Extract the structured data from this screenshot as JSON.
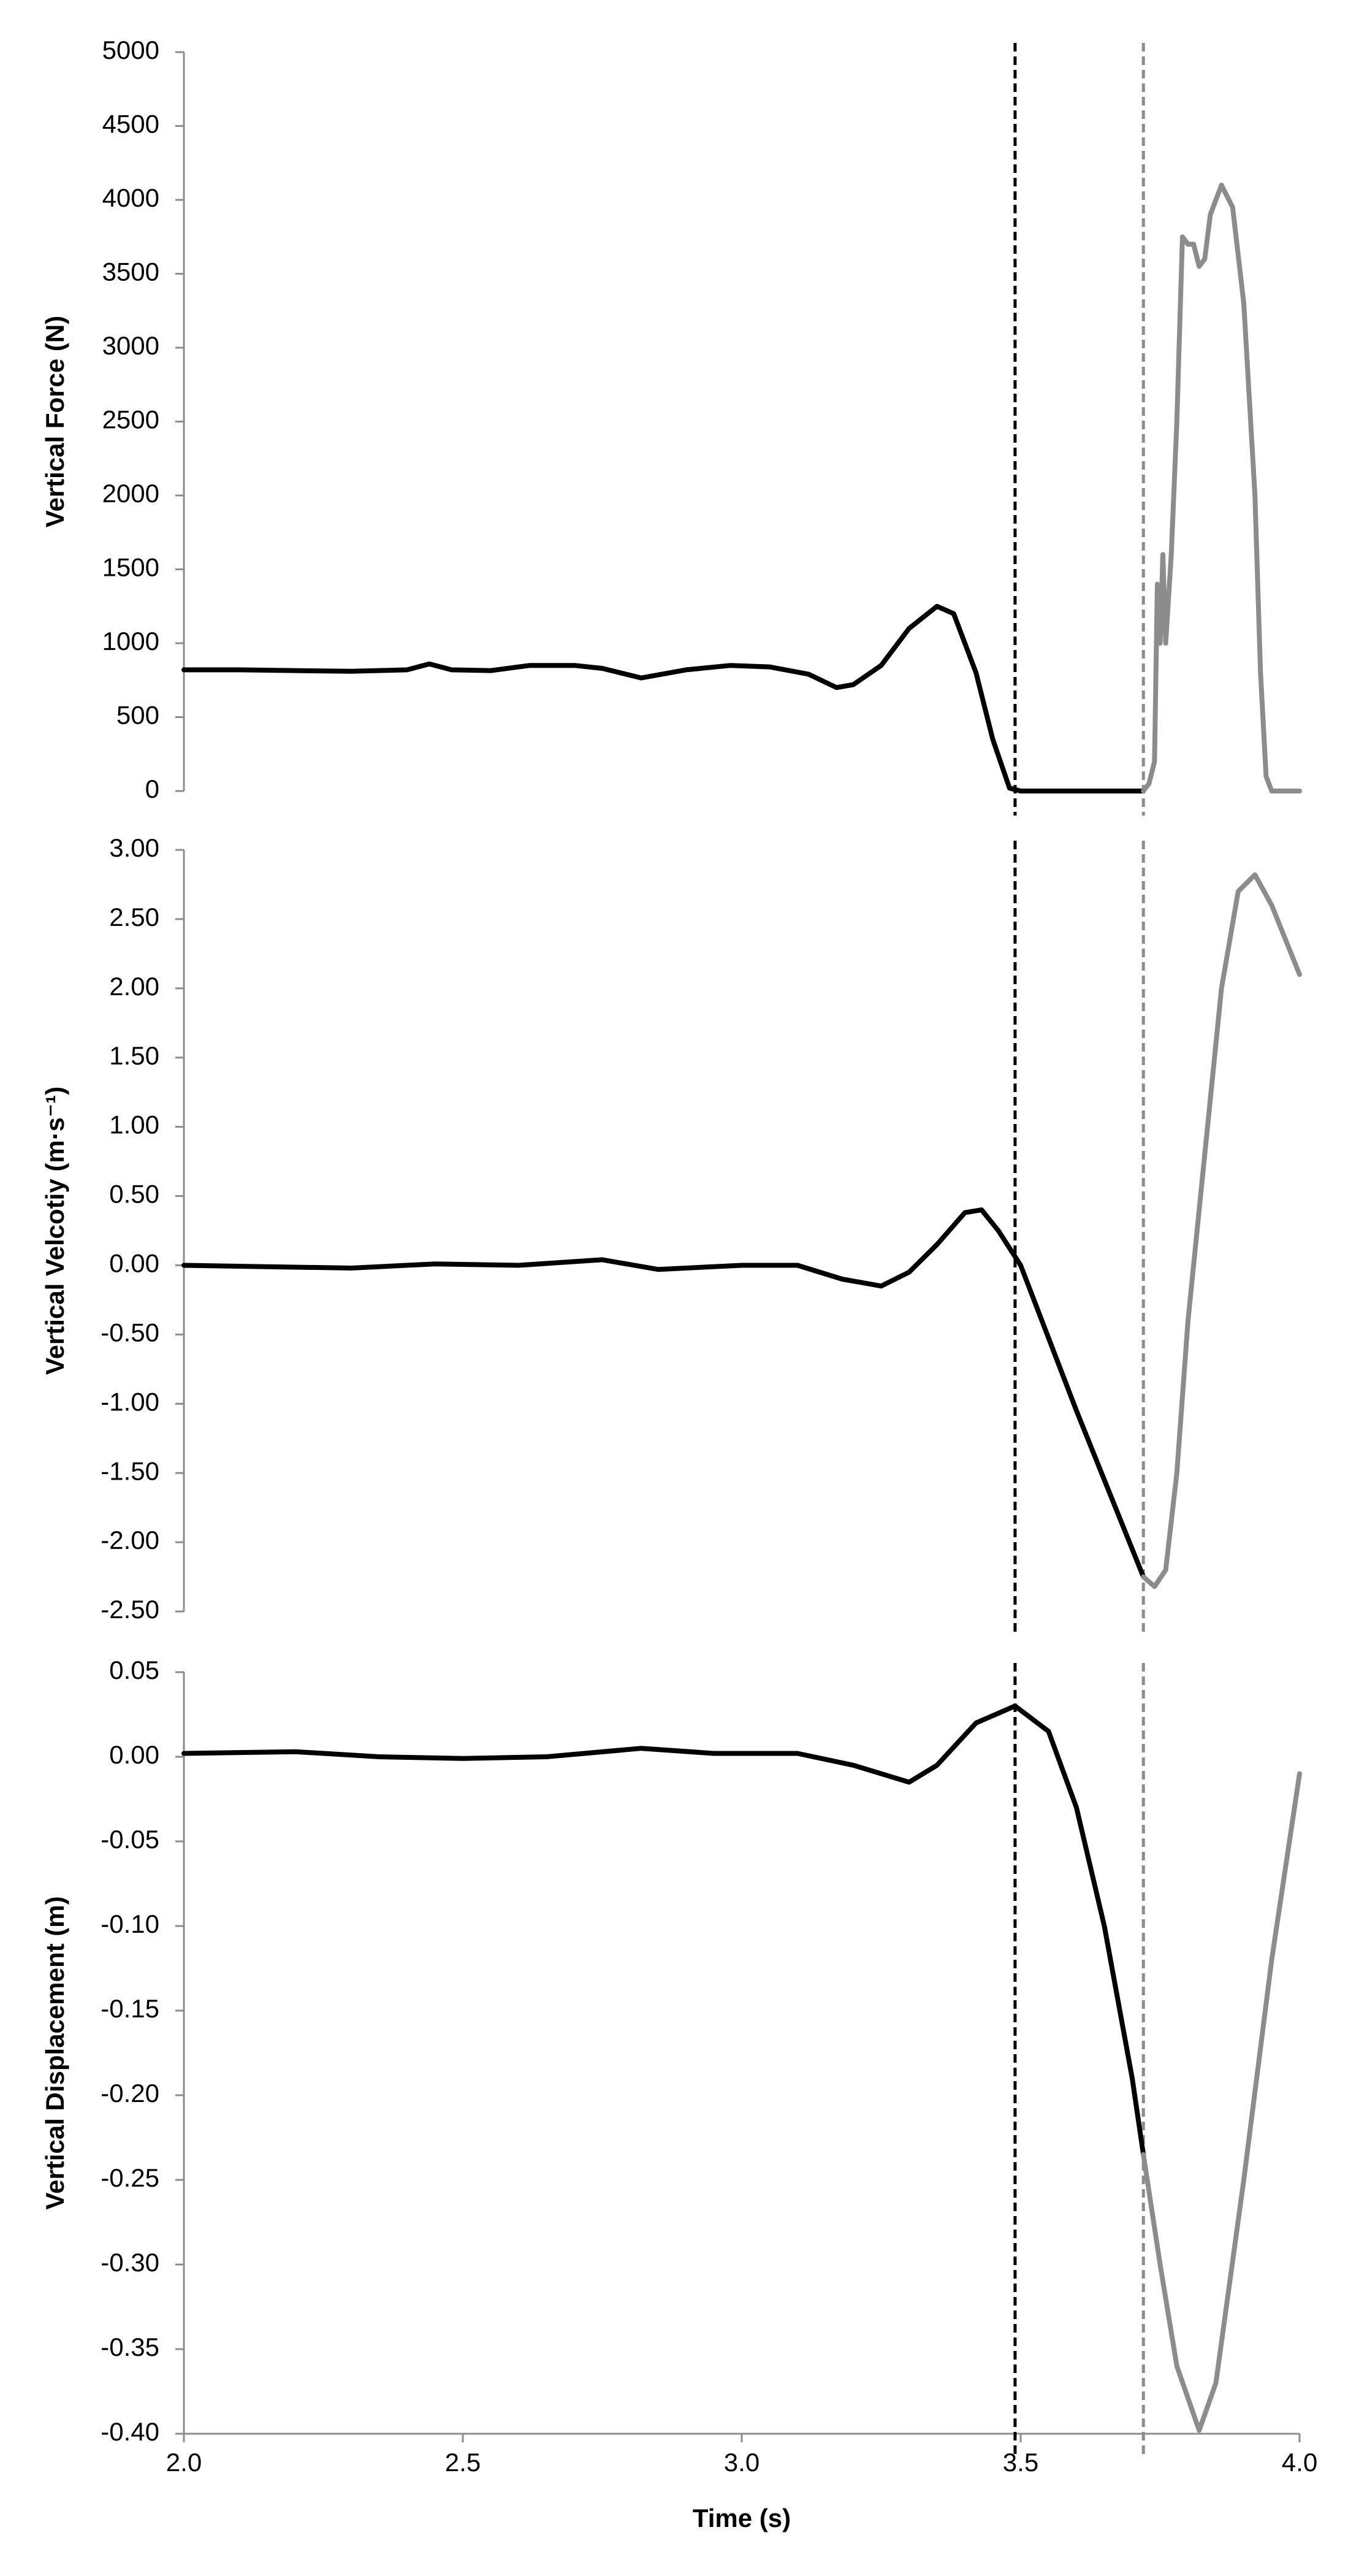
{
  "chart_data": [
    {
      "type": "line",
      "ylabel": "Vertical Force (N)",
      "xlim": [
        2.0,
        4.0
      ],
      "ylim": [
        0,
        5000
      ],
      "yticks": [
        0,
        500,
        1000,
        1500,
        2000,
        2500,
        3000,
        3500,
        4000,
        4500,
        5000
      ],
      "vlines": [
        {
          "x": 3.49,
          "color": "#000000"
        },
        {
          "x": 3.72,
          "color": "#8c8c8c"
        }
      ],
      "series": [
        {
          "color": "#000000",
          "x": [
            2.0,
            2.1,
            2.2,
            2.3,
            2.4,
            2.44,
            2.48,
            2.55,
            2.62,
            2.7,
            2.75,
            2.82,
            2.9,
            2.98,
            3.05,
            3.12,
            3.17,
            3.2,
            3.25,
            3.3,
            3.35,
            3.38,
            3.42,
            3.45,
            3.48,
            3.5,
            3.6,
            3.72
          ],
          "values": [
            820,
            820,
            815,
            810,
            820,
            860,
            820,
            815,
            850,
            850,
            830,
            765,
            820,
            850,
            840,
            790,
            700,
            720,
            850,
            1100,
            1250,
            1200,
            800,
            350,
            20,
            0,
            0,
            0
          ]
        },
        {
          "color": "#8c8c8c",
          "x": [
            3.72,
            3.73,
            3.74,
            3.745,
            3.75,
            3.755,
            3.76,
            3.77,
            3.78,
            3.79,
            3.8,
            3.81,
            3.82,
            3.83,
            3.84,
            3.86,
            3.88,
            3.9,
            3.92,
            3.93,
            3.94,
            3.95,
            4.0
          ],
          "values": [
            0,
            50,
            200,
            1400,
            1000,
            1600,
            1000,
            1600,
            2500,
            3750,
            3700,
            3700,
            3550,
            3600,
            3900,
            4100,
            3950,
            3300,
            2000,
            800,
            100,
            0,
            0
          ]
        }
      ]
    },
    {
      "type": "line",
      "ylabel": "Vertical Velcotiy (m·s⁻¹)",
      "xlim": [
        2.0,
        4.0
      ],
      "ylim": [
        -2.5,
        3.0
      ],
      "yticks": [
        {
          "value": -2.5,
          "label": "-2.50"
        },
        {
          "value": -2.0,
          "label": "-2.00"
        },
        {
          "value": -1.5,
          "label": "-1.50"
        },
        {
          "value": -1.0,
          "label": "-1.00"
        },
        {
          "value": -0.5,
          "label": "-0.50"
        },
        {
          "value": 0,
          "label": "0.00"
        },
        {
          "value": 0.5,
          "label": "0.50"
        },
        {
          "value": 1.0,
          "label": "1.00"
        },
        {
          "value": 1.5,
          "label": "1.50"
        },
        {
          "value": 2.0,
          "label": "2.00"
        },
        {
          "value": 2.5,
          "label": "2.50"
        },
        {
          "value": 3.0,
          "label": "3.00"
        }
      ],
      "vlines": [
        {
          "x": 3.49,
          "color": "#000000"
        },
        {
          "x": 3.72,
          "color": "#8c8c8c"
        }
      ],
      "series": [
        {
          "color": "#000000",
          "x": [
            2.0,
            2.3,
            2.45,
            2.6,
            2.75,
            2.85,
            3.0,
            3.1,
            3.18,
            3.25,
            3.3,
            3.35,
            3.4,
            3.43,
            3.46,
            3.5,
            3.6,
            3.72
          ],
          "values": [
            0,
            -0.02,
            0.01,
            0.0,
            0.04,
            -0.03,
            0.0,
            0.0,
            -0.1,
            -0.15,
            -0.05,
            0.15,
            0.38,
            0.4,
            0.25,
            0.0,
            -1.05,
            -2.25
          ]
        },
        {
          "color": "#8c8c8c",
          "x": [
            3.72,
            3.74,
            3.76,
            3.78,
            3.8,
            3.83,
            3.86,
            3.89,
            3.92,
            3.95,
            4.0
          ],
          "values": [
            -2.25,
            -2.32,
            -2.2,
            -1.5,
            -0.4,
            0.8,
            2.0,
            2.7,
            2.82,
            2.6,
            2.1
          ]
        }
      ]
    },
    {
      "type": "line",
      "ylabel": "Vertical Displacement (m)",
      "xlabel": "Time (s)",
      "xlim": [
        2.0,
        4.0
      ],
      "ylim": [
        -0.4,
        0.05
      ],
      "xticks": [
        {
          "value": 2.0,
          "label": "2.0"
        },
        2.5,
        {
          "value": 3.0,
          "label": "3.0"
        },
        3.5,
        {
          "value": 4.0,
          "label": "4.0"
        }
      ],
      "yticks": [
        {
          "value": -0.4,
          "label": "-0.40"
        },
        -0.35,
        {
          "value": -0.3,
          "label": "-0.30"
        },
        -0.25,
        {
          "value": -0.2,
          "label": "-0.20"
        },
        -0.15,
        {
          "value": -0.1,
          "label": "-0.10"
        },
        -0.05,
        {
          "value": 0,
          "label": "0.00"
        },
        0.05
      ],
      "vlines": [
        {
          "x": 3.49,
          "color": "#000000"
        },
        {
          "x": 3.72,
          "color": "#8c8c8c"
        }
      ],
      "series": [
        {
          "color": "#000000",
          "x": [
            2.0,
            2.2,
            2.35,
            2.5,
            2.65,
            2.82,
            2.95,
            3.1,
            3.2,
            3.3,
            3.35,
            3.42,
            3.49,
            3.55,
            3.6,
            3.65,
            3.7,
            3.72
          ],
          "values": [
            0.002,
            0.003,
            0.0,
            -0.001,
            0.0,
            0.005,
            0.002,
            0.002,
            -0.005,
            -0.015,
            -0.005,
            0.02,
            0.03,
            0.015,
            -0.03,
            -0.1,
            -0.19,
            -0.235
          ]
        },
        {
          "color": "#8c8c8c",
          "x": [
            3.72,
            3.75,
            3.78,
            3.82,
            3.85,
            3.9,
            3.95,
            4.0
          ],
          "values": [
            -0.235,
            -0.3,
            -0.36,
            -0.398,
            -0.37,
            -0.25,
            -0.12,
            -0.01
          ]
        }
      ]
    }
  ]
}
